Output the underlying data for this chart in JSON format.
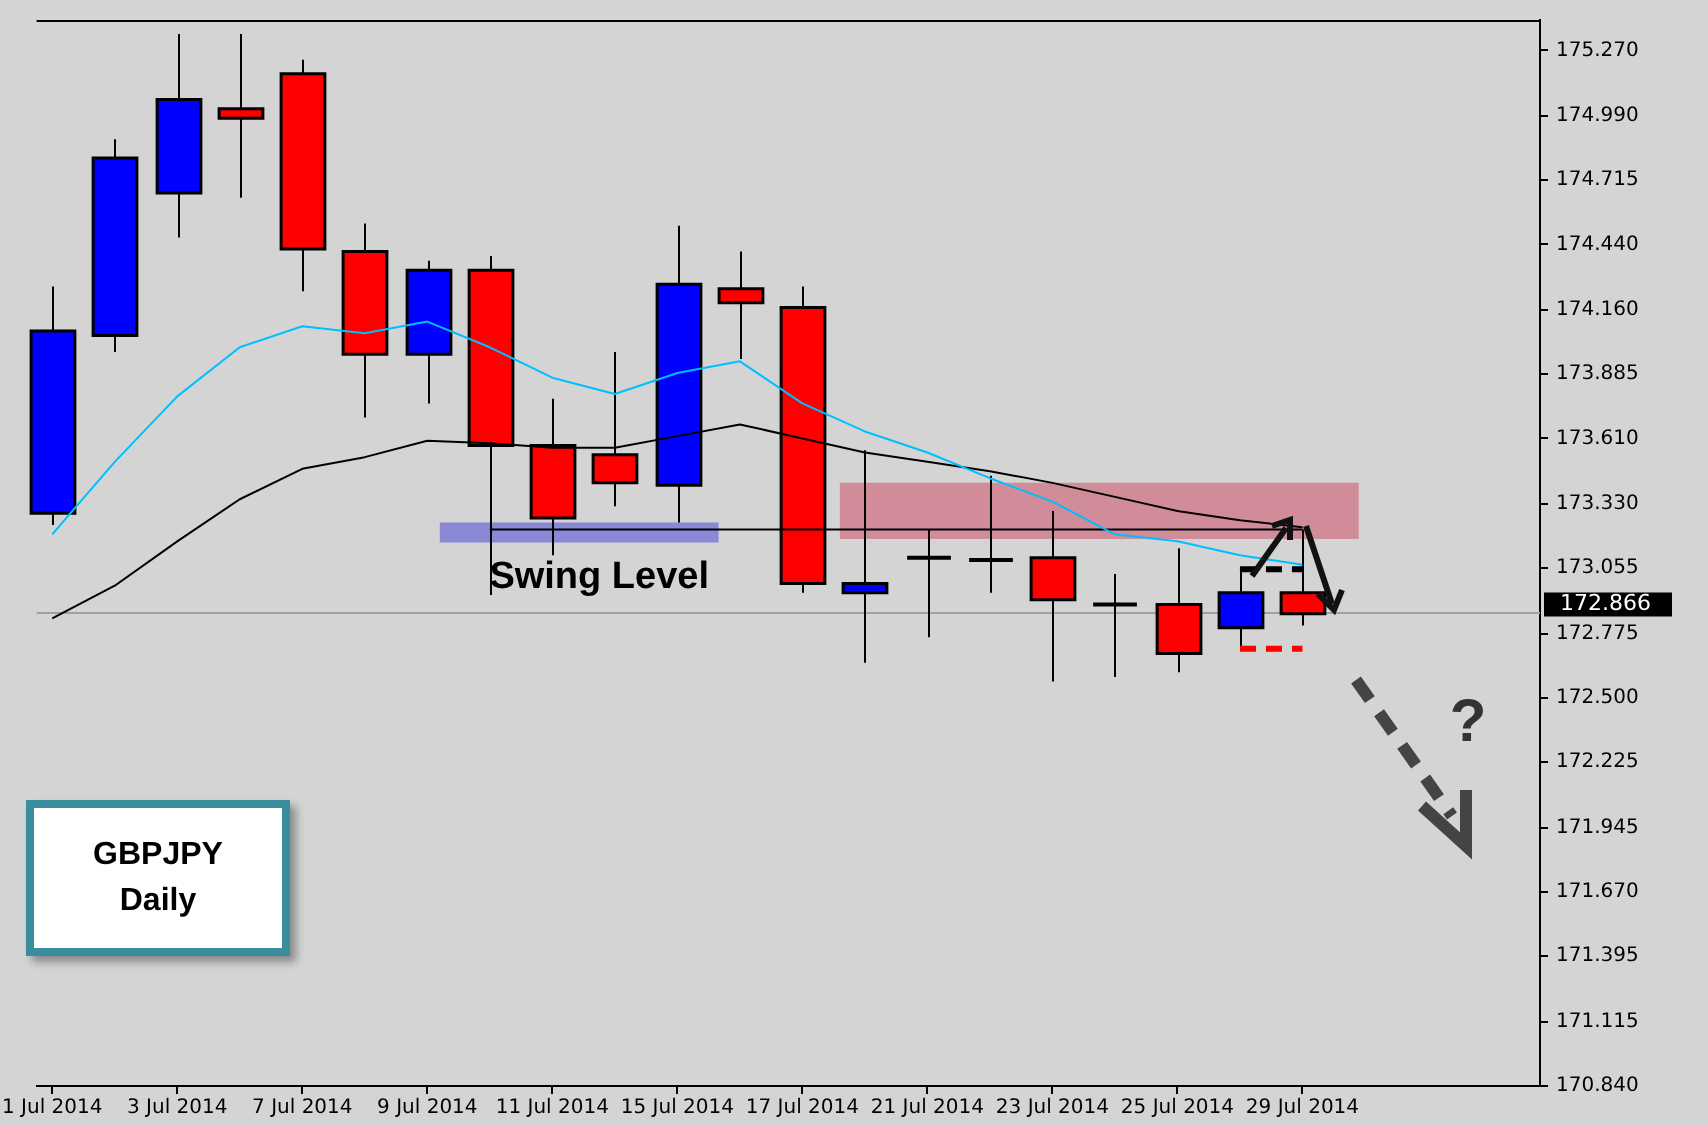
{
  "chart_data": {
    "type": "candlestick",
    "title": "GBPJPY",
    "subtitle": "Daily",
    "categories": [
      "1 Jul 2014",
      null,
      "3 Jul 2014",
      null,
      "7 Jul 2014",
      null,
      "9 Jul 2014",
      null,
      "11 Jul 2014",
      null,
      "15 Jul 2014",
      null,
      "17 Jul 2014",
      null,
      "21 Jul 2014",
      null,
      "23 Jul 2014",
      null,
      "25 Jul 2014",
      null,
      "29 Jul 2014"
    ],
    "ohlc": [
      [
        173.29,
        174.26,
        173.24,
        174.07
      ],
      [
        174.05,
        174.89,
        173.98,
        174.81
      ],
      [
        174.66,
        175.34,
        174.47,
        175.06
      ],
      [
        175.02,
        175.34,
        174.64,
        174.98
      ],
      [
        175.17,
        175.23,
        174.24,
        174.42
      ],
      [
        174.41,
        174.53,
        173.7,
        173.97
      ],
      [
        173.97,
        174.37,
        173.76,
        174.33
      ],
      [
        174.33,
        174.39,
        172.94,
        173.58
      ],
      [
        173.58,
        173.78,
        173.11,
        173.27
      ],
      [
        173.54,
        173.98,
        173.32,
        173.42
      ],
      [
        173.41,
        174.52,
        173.25,
        174.27
      ],
      [
        174.25,
        174.41,
        173.95,
        174.19
      ],
      [
        174.17,
        174.26,
        172.95,
        172.99
      ],
      [
        172.95,
        173.56,
        172.65,
        172.99
      ],
      [
        173.1,
        173.22,
        172.76,
        173.1
      ],
      [
        173.09,
        173.45,
        172.95,
        173.09
      ],
      [
        173.1,
        173.3,
        172.57,
        172.92
      ],
      [
        172.9,
        173.03,
        172.59,
        172.9
      ],
      [
        172.9,
        173.14,
        172.61,
        172.69
      ],
      [
        172.8,
        173.06,
        172.72,
        172.95
      ],
      [
        172.95,
        173.22,
        172.81,
        172.86
      ]
    ],
    "colors": [
      "#0000ff",
      "#0000ff",
      "#0000ff",
      "#ff0000",
      "#ff0000",
      "#ff0000",
      "#0000ff",
      "#ff0000",
      "#ff0000",
      "#ff0000",
      "#0000ff",
      "#ff0000",
      "#ff0000",
      "#0000ff",
      "#000000",
      "#000000",
      "#ff0000",
      "#000000",
      "#ff0000",
      "#0000ff",
      "#ff0000"
    ],
    "series": [
      {
        "type": "line",
        "color": "#00bfff",
        "values": [
          173.2,
          173.51,
          173.79,
          174.0,
          174.09,
          174.06,
          174.11,
          174.0,
          173.87,
          173.8,
          173.89,
          173.94,
          173.76,
          173.64,
          173.55,
          173.44,
          173.34,
          173.2,
          173.17,
          173.11,
          173.07
        ]
      },
      {
        "type": "line",
        "color": "#000000",
        "values": [
          172.84,
          172.98,
          173.17,
          173.35,
          173.48,
          173.53,
          173.6,
          173.59,
          173.57,
          173.57,
          173.62,
          173.67,
          173.61,
          173.55,
          173.51,
          173.47,
          173.42,
          173.36,
          173.3,
          173.26,
          173.23
        ]
      },
      {
        "type": "line",
        "color": "#000000",
        "values": [
          null,
          null,
          null,
          null,
          null,
          null,
          null,
          173.22,
          173.22,
          173.22,
          173.22,
          173.22,
          173.22,
          173.22,
          173.22,
          173.22,
          173.22,
          173.22,
          173.22,
          173.22,
          173.22
        ]
      },
      {
        "type": "line",
        "color": "#000000",
        "values": [
          null,
          null,
          null,
          null,
          null,
          null,
          null,
          null,
          null,
          null,
          null,
          null,
          null,
          null,
          null,
          null,
          null,
          null,
          null,
          173.05,
          173.05
        ],
        "line_style": "dashed"
      },
      {
        "type": "line",
        "color": "#ff0000",
        "values": [
          null,
          null,
          null,
          null,
          null,
          null,
          null,
          null,
          null,
          null,
          null,
          null,
          null,
          null,
          null,
          null,
          null,
          null,
          null,
          172.71,
          172.71
        ],
        "line_style": "dashed"
      }
    ],
    "marker": "none",
    "ylim": [
      170.84,
      175.4
    ],
    "yticks": [
      {
        "value": 175.27,
        "label": "175.270"
      },
      {
        "value": 174.99,
        "label": "174.990"
      },
      174.715,
      {
        "value": 174.44,
        "label": "174.440"
      },
      {
        "value": 174.16,
        "label": "174.160"
      },
      173.885,
      {
        "value": 173.61,
        "label": "173.610"
      },
      {
        "value": 173.33,
        "label": "173.330"
      },
      173.055,
      172.775,
      {
        "value": 172.5,
        "label": "172.500"
      },
      172.225,
      171.945,
      {
        "value": 171.67,
        "label": "171.670"
      },
      171.395,
      171.115,
      {
        "value": 170.84,
        "label": "170.840"
      }
    ],
    "ref_lines": [
      {
        "axis": "y",
        "value": 172.866,
        "label": "172.866",
        "color": "#a0a0a0"
      }
    ],
    "bands": [
      {
        "axis": "y",
        "from": 173.165,
        "to": 173.25,
        "label": "Swing Level",
        "color": "#7b7bd6"
      },
      {
        "axis": "y",
        "from": 173.18,
        "to": 173.42,
        "color": "#d07f8f"
      }
    ],
    "annotations": [
      "?"
    ]
  }
}
